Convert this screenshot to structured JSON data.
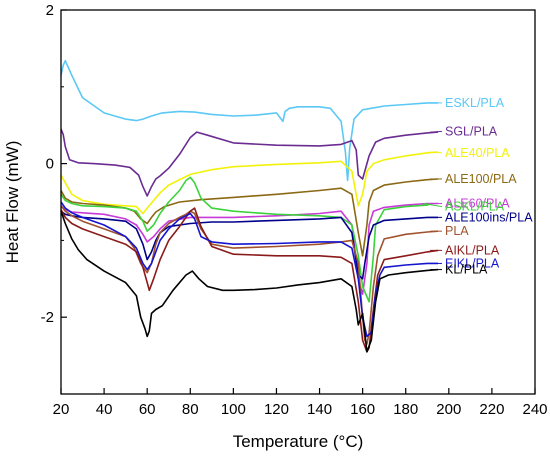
{
  "chart_data": {
    "type": "line",
    "xlabel": "Temperature (°C)",
    "ylabel": "Heat Flow (mW)",
    "xlim": [
      20,
      240
    ],
    "ylim": [
      -3,
      2
    ],
    "xticks": [
      20,
      40,
      60,
      80,
      100,
      120,
      140,
      160,
      180,
      200,
      220,
      240
    ],
    "yticks": [
      -2,
      0,
      2
    ],
    "grid": false,
    "legend": "inline-right",
    "series": [
      {
        "name": "ESKL/PLA",
        "color": "#5bc8f5",
        "label_y": 0.79,
        "x": [
          20,
          21,
          22,
          25,
          30,
          40,
          50,
          55,
          58,
          62,
          67,
          75,
          82,
          90,
          100,
          110,
          120,
          123,
          124,
          126,
          130,
          140,
          145,
          150,
          152,
          153,
          154,
          156,
          160,
          170,
          180,
          190,
          195
        ],
        "y": [
          1.15,
          1.28,
          1.34,
          1.15,
          0.86,
          0.66,
          0.58,
          0.56,
          0.58,
          0.62,
          0.66,
          0.68,
          0.67,
          0.64,
          0.62,
          0.63,
          0.66,
          0.55,
          0.68,
          0.72,
          0.74,
          0.74,
          0.72,
          0.55,
          0.15,
          -0.22,
          0.2,
          0.58,
          0.7,
          0.75,
          0.77,
          0.79,
          0.79
        ]
      },
      {
        "name": "SGL/PLA",
        "color": "#6a2c91",
        "label_y": 0.42,
        "x": [
          20,
          21,
          22,
          24,
          28,
          35,
          45,
          52,
          56,
          58,
          60,
          62,
          64,
          66,
          70,
          75,
          80,
          83,
          88,
          100,
          120,
          140,
          150,
          155,
          157,
          158,
          160,
          163,
          166,
          170,
          180,
          190,
          195
        ],
        "y": [
          0.45,
          0.38,
          0.22,
          0.05,
          0.01,
          0.0,
          -0.02,
          -0.05,
          -0.15,
          -0.3,
          -0.42,
          -0.3,
          -0.2,
          -0.16,
          -0.06,
          0.12,
          0.34,
          0.41,
          0.37,
          0.27,
          0.24,
          0.23,
          0.25,
          0.3,
          0.18,
          -0.15,
          -0.2,
          0.1,
          0.28,
          0.33,
          0.37,
          0.4,
          0.41
        ]
      },
      {
        "name": "ALE40/PLA",
        "color": "#f2f20a",
        "label_y": 0.14,
        "x": [
          20,
          22,
          25,
          30,
          40,
          50,
          55,
          58,
          60,
          63,
          66,
          70,
          80,
          90,
          100,
          120,
          140,
          150,
          155,
          158,
          160,
          162,
          165,
          170,
          180,
          190,
          195
        ],
        "y": [
          -0.15,
          -0.25,
          -0.4,
          -0.48,
          -0.53,
          -0.55,
          -0.56,
          -0.65,
          -0.58,
          -0.48,
          -0.38,
          -0.28,
          -0.14,
          -0.08,
          -0.04,
          -0.01,
          0.01,
          0.03,
          -0.1,
          -0.55,
          -0.4,
          -0.1,
          0.0,
          0.05,
          0.1,
          0.14,
          0.15
        ]
      },
      {
        "name": "ALE100/PLA",
        "color": "#8b6914",
        "label_y": -0.2,
        "x": [
          20,
          22,
          25,
          30,
          40,
          50,
          54,
          57,
          60,
          62,
          64,
          68,
          75,
          85,
          100,
          120,
          140,
          150,
          155,
          158,
          160,
          162,
          163,
          165,
          170,
          180,
          190,
          195
        ],
        "y": [
          -0.35,
          -0.45,
          -0.5,
          -0.52,
          -0.54,
          -0.58,
          -0.62,
          -0.72,
          -0.78,
          -0.7,
          -0.63,
          -0.56,
          -0.5,
          -0.47,
          -0.44,
          -0.4,
          -0.35,
          -0.32,
          -0.4,
          -0.9,
          -1.2,
          -0.8,
          -0.5,
          -0.35,
          -0.28,
          -0.24,
          -0.21,
          -0.2
        ]
      },
      {
        "name": "ALE60/PLA",
        "color": "#c83ad8",
        "label_y": -0.52,
        "x": [
          20,
          22,
          25,
          30,
          40,
          50,
          55,
          58,
          60,
          63,
          66,
          70,
          80,
          90,
          100,
          120,
          140,
          150,
          155,
          158,
          160,
          162,
          163,
          165,
          170,
          180,
          190,
          195
        ],
        "y": [
          -0.55,
          -0.6,
          -0.63,
          -0.64,
          -0.66,
          -0.72,
          -0.8,
          -0.92,
          -1.02,
          -0.95,
          -0.85,
          -0.75,
          -0.7,
          -0.7,
          -0.7,
          -0.68,
          -0.65,
          -0.62,
          -0.8,
          -1.5,
          -1.7,
          -1.3,
          -0.8,
          -0.62,
          -0.57,
          -0.54,
          -0.52,
          -0.52
        ]
      },
      {
        "name": "ASKL/PLA",
        "color": "#3cd23c",
        "label_y": -0.56,
        "x": [
          20,
          22,
          25,
          30,
          40,
          50,
          55,
          58,
          60,
          63,
          66,
          70,
          75,
          78,
          80,
          82,
          85,
          90,
          100,
          120,
          140,
          150,
          155,
          158,
          160,
          163,
          165,
          166,
          170,
          180,
          190,
          192
        ],
        "y": [
          -0.4,
          -0.48,
          -0.52,
          -0.55,
          -0.56,
          -0.58,
          -0.62,
          -0.75,
          -0.88,
          -0.8,
          -0.65,
          -0.5,
          -0.35,
          -0.22,
          -0.18,
          -0.25,
          -0.45,
          -0.58,
          -0.62,
          -0.66,
          -0.68,
          -0.7,
          -0.8,
          -1.2,
          -1.6,
          -1.8,
          -1.2,
          -0.8,
          -0.6,
          -0.56,
          -0.54,
          -0.52
        ]
      },
      {
        "name": "ALE100ins/PLA",
        "color": "#00008b",
        "label_y": -0.7,
        "x": [
          20,
          22,
          25,
          30,
          40,
          50,
          55,
          58,
          60,
          62,
          64,
          66,
          70,
          80,
          90,
          100,
          120,
          140,
          150,
          155,
          158,
          160,
          161,
          163,
          165,
          170,
          180,
          190,
          195
        ],
        "y": [
          -0.62,
          -0.66,
          -0.68,
          -0.7,
          -0.72,
          -0.75,
          -0.85,
          -1.05,
          -1.25,
          -1.15,
          -1.0,
          -0.9,
          -0.82,
          -0.78,
          -0.76,
          -0.76,
          -0.74,
          -0.72,
          -0.7,
          -0.9,
          -1.45,
          -1.5,
          -1.3,
          -0.95,
          -0.8,
          -0.74,
          -0.72,
          -0.7,
          -0.7
        ]
      },
      {
        "name": "PLA",
        "color": "#a0522d",
        "label_y": -0.88,
        "x": [
          20,
          22,
          25,
          30,
          40,
          50,
          54,
          57,
          60,
          62,
          64,
          66,
          70,
          75,
          78,
          80,
          82,
          85,
          90,
          100,
          120,
          140,
          150,
          155,
          158,
          160,
          161,
          162,
          163,
          165,
          167,
          170,
          180,
          190,
          195
        ],
        "y": [
          -0.55,
          -0.62,
          -0.68,
          -0.75,
          -0.85,
          -0.95,
          -1.1,
          -1.3,
          -1.42,
          -1.3,
          -1.05,
          -0.9,
          -0.78,
          -0.7,
          -0.66,
          -0.62,
          -0.65,
          -0.85,
          -1.05,
          -1.1,
          -1.08,
          -1.05,
          -1.02,
          -1.0,
          -1.3,
          -2.0,
          -2.3,
          -2.35,
          -2.2,
          -1.6,
          -1.2,
          -0.98,
          -0.92,
          -0.89,
          -0.88
        ]
      },
      {
        "name": "AIKL/PLA",
        "color": "#8b1a1a",
        "label_y": -1.13,
        "x": [
          20,
          22,
          25,
          30,
          40,
          50,
          55,
          58,
          60,
          61,
          63,
          66,
          70,
          75,
          80,
          82,
          85,
          90,
          100,
          120,
          140,
          150,
          155,
          158,
          160,
          162,
          163,
          165,
          167,
          170,
          180,
          190,
          195
        ],
        "y": [
          -0.6,
          -0.7,
          -0.78,
          -0.85,
          -0.95,
          -1.05,
          -1.15,
          -1.35,
          -1.55,
          -1.65,
          -1.5,
          -1.25,
          -1.0,
          -0.82,
          -0.62,
          -0.58,
          -0.82,
          -1.08,
          -1.18,
          -1.2,
          -1.2,
          -1.22,
          -1.3,
          -1.8,
          -2.3,
          -2.45,
          -2.4,
          -1.9,
          -1.45,
          -1.25,
          -1.2,
          -1.15,
          -1.13
        ]
      },
      {
        "name": "EIKL/PLA",
        "color": "#1515d0",
        "label_y": -1.3,
        "x": [
          20,
          22,
          25,
          30,
          40,
          50,
          55,
          58,
          60,
          62,
          64,
          66,
          70,
          75,
          78,
          80,
          82,
          85,
          90,
          100,
          120,
          140,
          150,
          155,
          158,
          160,
          162,
          164,
          166,
          168,
          170,
          180,
          190,
          195
        ],
        "y": [
          -0.5,
          -0.58,
          -0.64,
          -0.7,
          -0.8,
          -0.95,
          -1.1,
          -1.3,
          -1.38,
          -1.3,
          -1.15,
          -1.0,
          -0.85,
          -0.72,
          -0.68,
          -0.65,
          -0.72,
          -0.95,
          -1.02,
          -1.05,
          -1.04,
          -1.02,
          -1.02,
          -1.1,
          -1.5,
          -2.0,
          -2.25,
          -2.2,
          -1.7,
          -1.45,
          -1.35,
          -1.32,
          -1.3,
          -1.3
        ]
      },
      {
        "name": "KL/PLA",
        "color": "#000000",
        "label_y": -1.38,
        "x": [
          20,
          22,
          25,
          28,
          32,
          40,
          50,
          55,
          57,
          59,
          60,
          61,
          62,
          64,
          67,
          72,
          78,
          81,
          84,
          88,
          95,
          100,
          110,
          120,
          130,
          140,
          150,
          155,
          157,
          158,
          160,
          161,
          162,
          164,
          166,
          168,
          172,
          180,
          190,
          195
        ],
        "y": [
          -0.62,
          -0.78,
          -0.98,
          -1.12,
          -1.25,
          -1.4,
          -1.55,
          -1.72,
          -2.0,
          -2.15,
          -2.25,
          -2.18,
          -1.95,
          -1.9,
          -1.85,
          -1.65,
          -1.45,
          -1.4,
          -1.5,
          -1.6,
          -1.65,
          -1.65,
          -1.64,
          -1.62,
          -1.58,
          -1.55,
          -1.5,
          -1.6,
          -1.9,
          -2.1,
          -1.95,
          -2.2,
          -2.45,
          -2.3,
          -1.8,
          -1.5,
          -1.45,
          -1.42,
          -1.39,
          -1.38
        ]
      }
    ]
  }
}
